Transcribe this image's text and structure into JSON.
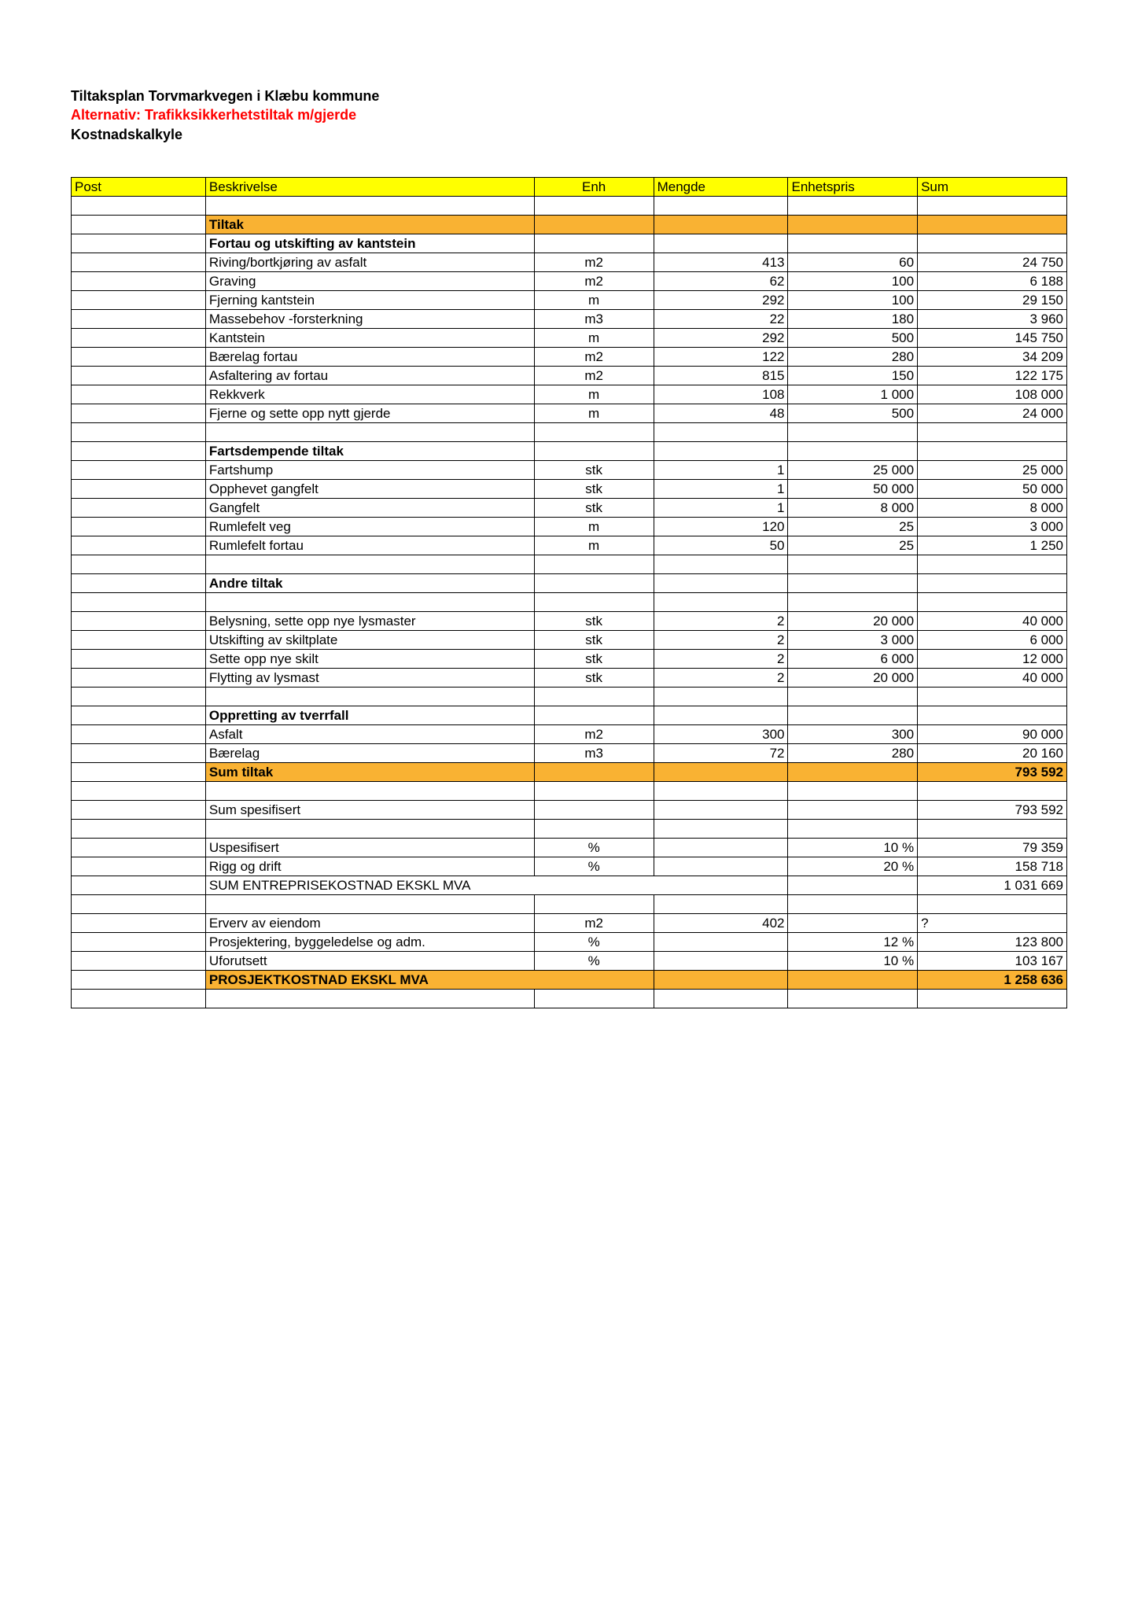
{
  "titles": {
    "line1": "Tiltaksplan Torvmarkvegen i Klæbu kommune",
    "line2": "Alternativ:  Trafikksikkerhetstiltak m/gjerde",
    "line3": "Kostnadskalkyle"
  },
  "headers": {
    "post": "Post",
    "beskrivelse": "Beskrivelse",
    "enh": "Enh",
    "mengde": "Mengde",
    "enhetspris": "Enhetspris",
    "sum": "Sum"
  },
  "labels": {
    "tiltak": "Tiltak",
    "sec1": "Fortau og utskifting av kantstein",
    "sec2": "Fartsdempende tiltak",
    "sec3": "Andre tiltak",
    "sec4": "Oppretting av tverrfall",
    "sum_tiltak": "Sum tiltak",
    "sum_spes": "Sum spesifisert",
    "uspes": "Uspesifisert",
    "rigg": "Rigg og drift",
    "sum_entreprise": "SUM ENTREPRISEKOSTNAD EKSKL MVA",
    "erverv": "Erverv av eiendom",
    "prosj": "Prosjektering, byggeledelse og adm.",
    "uforutsett": "Uforutsett",
    "prosjektkostnad": "PROSJEKTKOSTNAD EKSKL MVA"
  },
  "rows1": [
    {
      "b": "Riving/bortkjøring av asfalt",
      "e": "m2",
      "m": "413",
      "p": "60",
      "s": "24 750"
    },
    {
      "b": "Graving",
      "e": "m2",
      "m": "62",
      "p": "100",
      "s": "6 188"
    },
    {
      "b": "Fjerning kantstein",
      "e": "m",
      "m": "292",
      "p": "100",
      "s": "29 150"
    },
    {
      "b": "Massebehov -forsterkning",
      "e": "m3",
      "m": "22",
      "p": "180",
      "s": "3 960"
    },
    {
      "b": "Kantstein",
      "e": "m",
      "m": "292",
      "p": "500",
      "s": "145 750"
    },
    {
      "b": "Bærelag fortau",
      "e": "m2",
      "m": "122",
      "p": "280",
      "s": "34 209"
    },
    {
      "b": "Asfaltering av fortau",
      "e": "m2",
      "m": "815",
      "p": "150",
      "s": "122 175"
    },
    {
      "b": "Rekkverk",
      "e": "m",
      "m": "108",
      "p": "1 000",
      "s": "108 000"
    },
    {
      "b": "Fjerne og sette opp nytt gjerde",
      "e": "m",
      "m": "48",
      "p": "500",
      "s": "24 000"
    }
  ],
  "rows2": [
    {
      "b": "Fartshump",
      "e": "stk",
      "m": "1",
      "p": "25 000",
      "s": "25 000"
    },
    {
      "b": "Opphevet gangfelt",
      "e": "stk",
      "m": "1",
      "p": "50 000",
      "s": "50 000"
    },
    {
      "b": "Gangfelt",
      "e": "stk",
      "m": "1",
      "p": "8 000",
      "s": "8 000"
    },
    {
      "b": "Rumlefelt veg",
      "e": "m",
      "m": "120",
      "p": "25",
      "s": "3 000"
    },
    {
      "b": "Rumlefelt fortau",
      "e": "m",
      "m": "50",
      "p": "25",
      "s": "1 250"
    }
  ],
  "rows3": [
    {
      "b": "Belysning, sette opp nye lysmaster",
      "e": "stk",
      "m": "2",
      "p": "20 000",
      "s": "40 000"
    },
    {
      "b": "Utskifting av skiltplate",
      "e": "stk",
      "m": "2",
      "p": "3 000",
      "s": "6 000"
    },
    {
      "b": "Sette opp nye skilt",
      "e": "stk",
      "m": "2",
      "p": "6 000",
      "s": "12 000"
    },
    {
      "b": "Flytting av lysmast",
      "e": "stk",
      "m": "2",
      "p": "20 000",
      "s": "40 000"
    }
  ],
  "rows4": [
    {
      "b": "Asfalt",
      "e": "m2",
      "m": "300",
      "p": "300",
      "s": "90 000"
    },
    {
      "b": "Bærelag",
      "e": "m3",
      "m": "72",
      "p": "280",
      "s": "20 160"
    }
  ],
  "totals": {
    "sum_tiltak": "793 592",
    "sum_spes": "793 592",
    "uspes_pct": "10 %",
    "uspes_sum": "79 359",
    "rigg_pct": "20 %",
    "rigg_sum": "158 718",
    "entreprise_sum": "1 031 669",
    "erverv_e": "m2",
    "erverv_m": "402",
    "erverv_s": "?",
    "prosj_pct": "12 %",
    "prosj_sum": "123 800",
    "uforutsett_pct": "10 %",
    "uforutsett_sum": "103 167",
    "prosjektkostnad_sum": "1 258 636",
    "pct_unit": "%"
  },
  "style": {
    "yellow": "#ffff00",
    "orange": "#f9b233",
    "red": "#ff0000",
    "border": "#000000",
    "background": "#ffffff",
    "font_family": "Arial",
    "base_fontsize_pt": 12,
    "title_fontsize_pt": 13
  }
}
